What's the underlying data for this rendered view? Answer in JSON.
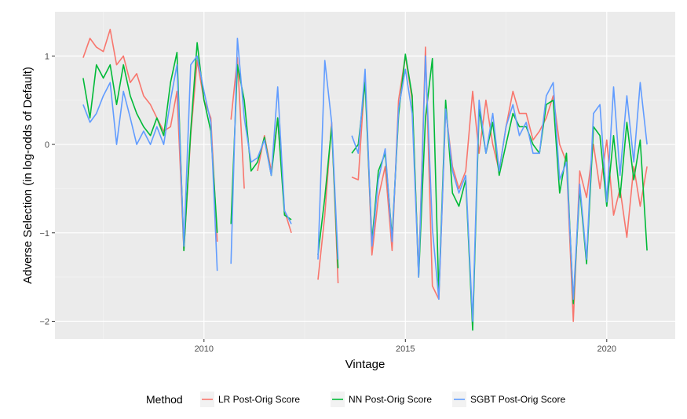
{
  "chart_data": {
    "type": "line",
    "title": "",
    "xlabel": "Vintage",
    "ylabel": "Adverse Selection (in log-odds of Default)",
    "xlim": [
      2006.3,
      2021.7
    ],
    "ylim": [
      -2.2,
      1.5
    ],
    "x_ticks": [
      2010,
      2015,
      2020
    ],
    "y_ticks": [
      -2,
      -1,
      0,
      1
    ],
    "x_tick_labels": [
      "2010",
      "2015",
      "2020"
    ],
    "y_tick_labels": [
      "-2",
      "-1",
      "0",
      "1"
    ],
    "grid": true,
    "legend_position": "bottom",
    "legend_title": "Method",
    "x": [
      2007.0,
      2007.17,
      2007.33,
      2007.5,
      2007.67,
      2007.83,
      2008.0,
      2008.17,
      2008.33,
      2008.5,
      2008.67,
      2008.83,
      2009.0,
      2009.17,
      2009.33,
      2009.5,
      2009.67,
      2009.83,
      2010.0,
      2010.17,
      2010.33,
      2010.5,
      2010.67,
      2010.83,
      2011.0,
      2011.17,
      2011.33,
      2011.5,
      2011.67,
      2011.83,
      2012.0,
      2012.17,
      2012.33,
      2012.5,
      2012.67,
      2012.83,
      2013.0,
      2013.17,
      2013.33,
      2013.5,
      2013.67,
      2013.83,
      2014.0,
      2014.17,
      2014.33,
      2014.5,
      2014.67,
      2014.83,
      2015.0,
      2015.17,
      2015.33,
      2015.5,
      2015.67,
      2015.83,
      2016.0,
      2016.17,
      2016.33,
      2016.5,
      2016.67,
      2016.83,
      2017.0,
      2017.17,
      2017.33,
      2017.5,
      2017.67,
      2017.83,
      2018.0,
      2018.17,
      2018.33,
      2018.5,
      2018.67,
      2018.83,
      2019.0,
      2019.17,
      2019.33,
      2019.5,
      2019.67,
      2019.83,
      2020.0,
      2020.17,
      2020.33,
      2020.5,
      2020.67,
      2020.83,
      2021.0
    ],
    "series": [
      {
        "name": "LR Post-Orig Score",
        "color": "#F8766D",
        "values": [
          0.98,
          1.2,
          1.1,
          1.05,
          1.3,
          0.9,
          1.0,
          0.7,
          0.8,
          0.55,
          0.45,
          0.3,
          0.15,
          0.2,
          0.6,
          -1.2,
          0.1,
          0.95,
          0.5,
          0.3,
          -1.1,
          null,
          0.28,
          0.98,
          -0.5,
          null,
          -0.3,
          0.1,
          -0.3,
          0.3,
          -0.75,
          -1.0,
          null,
          -0.35,
          null,
          -1.53,
          -0.8,
          0.25,
          -1.57,
          null,
          -0.37,
          -0.4,
          0.8,
          -1.25,
          -0.6,
          -0.25,
          -1.2,
          0.5,
          1.0,
          0.5,
          -1.48,
          1.1,
          -1.6,
          -1.75,
          0.4,
          -0.25,
          -0.5,
          -0.3,
          0.6,
          -0.1,
          0.5,
          0.0,
          -0.3,
          0.2,
          0.6,
          0.35,
          0.35,
          0.05,
          0.15,
          0.3,
          0.55,
          0.0,
          -0.2,
          -2.0,
          -0.3,
          -0.6,
          0.0,
          -0.5,
          0.05,
          -0.8,
          -0.5,
          -1.05,
          -0.25,
          -0.7,
          -0.25
        ]
      },
      {
        "name": "NN Post-Orig Score",
        "color": "#00BA38",
        "values": [
          0.75,
          0.3,
          0.9,
          0.75,
          0.9,
          0.45,
          0.9,
          0.55,
          0.35,
          0.2,
          0.1,
          0.3,
          0.1,
          0.7,
          1.04,
          -1.2,
          0.15,
          1.15,
          0.5,
          0.15,
          -1.0,
          null,
          -0.9,
          0.9,
          0.5,
          -0.3,
          -0.2,
          0.08,
          -0.35,
          0.3,
          -0.8,
          -0.85,
          null,
          -0.3,
          null,
          -1.25,
          -0.6,
          0.2,
          -1.4,
          null,
          -0.1,
          0.0,
          0.7,
          -1.1,
          -0.3,
          -0.1,
          -1.05,
          0.33,
          1.02,
          0.55,
          -1.5,
          0.3,
          0.97,
          -1.7,
          0.5,
          -0.55,
          -0.7,
          -0.4,
          -2.1,
          0.4,
          -0.1,
          0.25,
          -0.35,
          0.0,
          0.35,
          0.2,
          0.2,
          0.0,
          -0.1,
          0.45,
          0.5,
          -0.55,
          -0.1,
          -1.8,
          -0.5,
          -1.35,
          0.2,
          0.1,
          -0.7,
          0.1,
          -0.6,
          0.25,
          -0.4,
          0.05,
          -1.2
        ]
      },
      {
        "name": "SGBT Post-Orig Score",
        "color": "#619CFF",
        "values": [
          0.45,
          0.25,
          0.35,
          0.55,
          0.7,
          0.0,
          0.6,
          0.3,
          0.0,
          0.15,
          0.0,
          0.2,
          0.0,
          0.5,
          0.9,
          -1.15,
          0.9,
          1.0,
          0.6,
          0.25,
          -1.43,
          null,
          -1.35,
          1.2,
          0.3,
          -0.2,
          -0.15,
          0.05,
          -0.35,
          0.65,
          -0.75,
          -0.9,
          null,
          -0.15,
          null,
          -1.3,
          0.95,
          0.25,
          -1.3,
          null,
          0.1,
          -0.1,
          0.85,
          -1.15,
          -0.4,
          -0.05,
          -1.1,
          0.4,
          0.85,
          0.35,
          -1.5,
          1.0,
          -0.95,
          -1.75,
          0.4,
          -0.3,
          -0.55,
          -0.35,
          -2.0,
          0.5,
          -0.1,
          0.35,
          -0.3,
          0.2,
          0.45,
          0.1,
          0.25,
          -0.1,
          -0.1,
          0.55,
          0.7,
          -0.4,
          -0.2,
          -1.75,
          -0.45,
          -1.3,
          0.35,
          0.45,
          -0.65,
          0.65,
          -0.35,
          0.55,
          -0.2,
          0.7,
          0.0
        ]
      }
    ]
  }
}
